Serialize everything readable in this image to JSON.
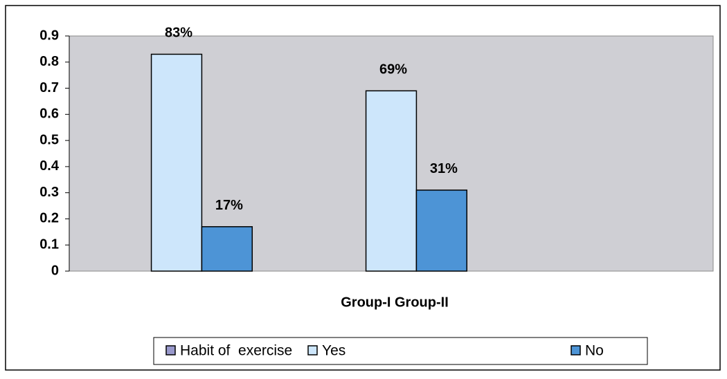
{
  "chart_data": {
    "type": "bar",
    "xlabel": "Group-I Group-II",
    "categories": [
      null,
      null,
      null
    ],
    "series": [
      {
        "name": "Habit of  exercise",
        "color": "#9999cc",
        "values": [
          null,
          null,
          null
        ]
      },
      {
        "name": "Yes",
        "color": "#cde6fb",
        "values": [
          0.83,
          0.69,
          null
        ],
        "value_labels": [
          "83%",
          "69%",
          null
        ]
      },
      {
        "name": "No",
        "color": "#4d94d6",
        "values": [
          0.17,
          0.31,
          null
        ],
        "value_labels": [
          "17%",
          "31%",
          null
        ]
      }
    ],
    "ylim": [
      0,
      0.9
    ],
    "yticks": [
      0,
      0.1,
      0.2,
      0.3,
      0.4,
      0.5,
      0.6,
      0.7,
      0.8,
      0.9
    ],
    "legend": "bottom"
  }
}
